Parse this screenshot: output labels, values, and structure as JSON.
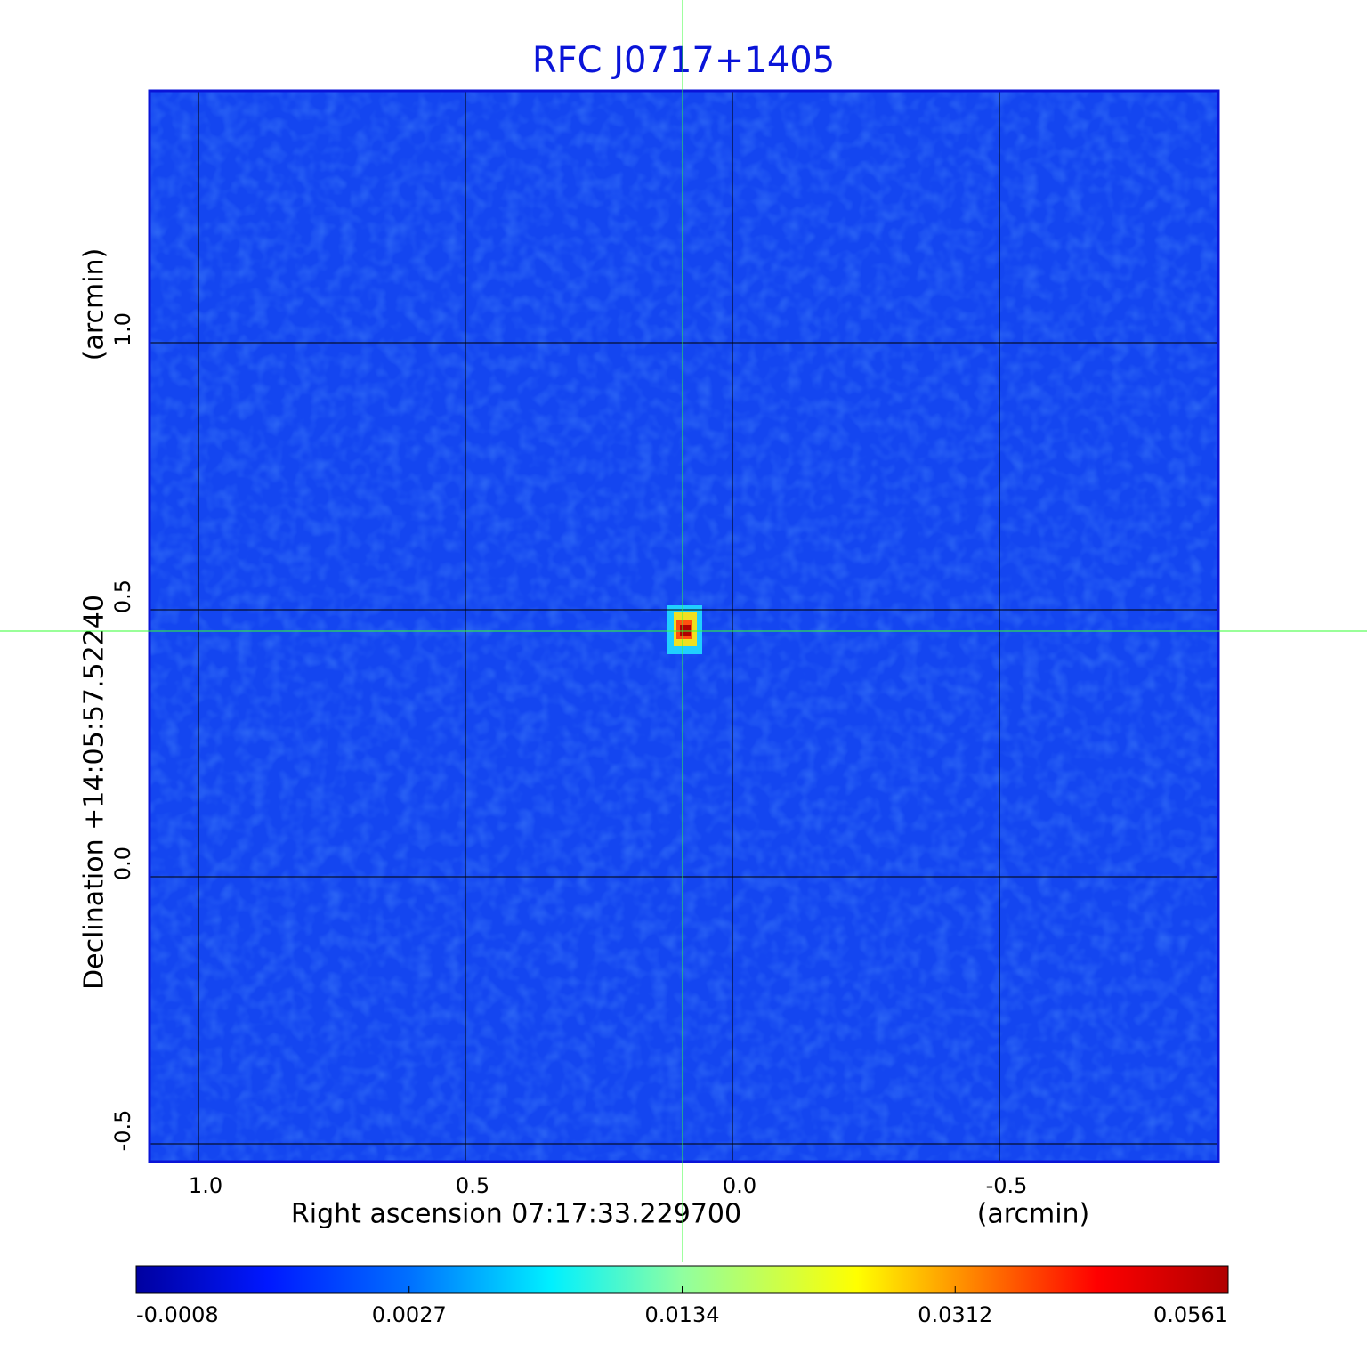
{
  "chart_data": {
    "type": "image",
    "title": "RFC J0717+1405",
    "x_label": "Right ascension  07:17:33.229700",
    "x_unit": "(arcmin)",
    "y_label": "Declination  +14:05:57.52240",
    "y_unit": "(arcmin)",
    "xlim": [
      1.0917,
      -0.91
    ],
    "ylim": [
      -0.5333,
      1.4717
    ],
    "xticks": [
      {
        "value": 1.0,
        "label": "1.0"
      },
      0.5,
      {
        "value": 0,
        "label": "0.0"
      },
      -0.5
    ],
    "yticks": [
      -0.5,
      {
        "value": 0,
        "label": "0.0"
      },
      0.5,
      {
        "value": 1.0,
        "label": "1.0"
      }
    ],
    "grid": true,
    "crosshair": {
      "x": 0.0933,
      "y": 0.46,
      "color": "#33ff33"
    },
    "colorbar_ticks": [
      -0.0008,
      0.0027,
      0.0134,
      0.0312,
      0.0561
    ]
  }
}
